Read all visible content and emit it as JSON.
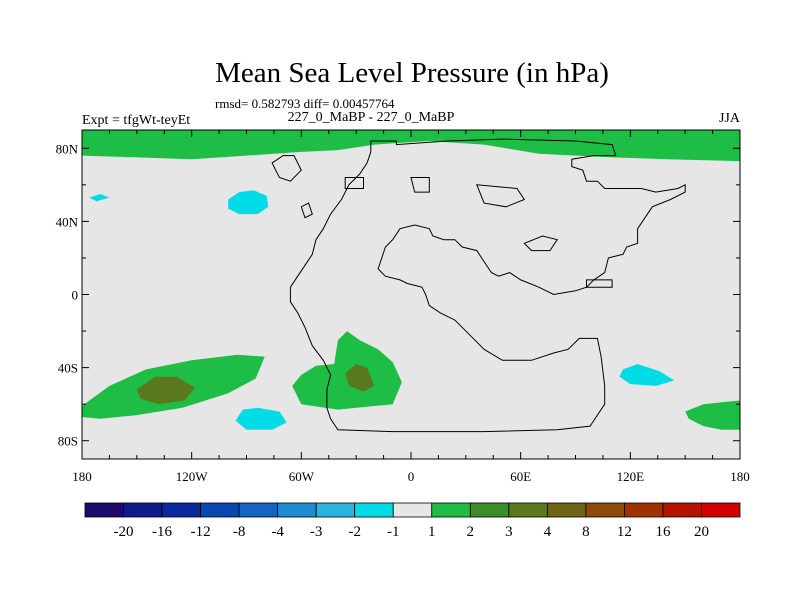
{
  "chart_data": {
    "type": "heatmap",
    "title": "Mean Sea Level Pressure (in hPa)",
    "stats_line": "rmsd= 0.582793 diff= 0.00457764",
    "left_label": "Expt = tfgWt-teyEt",
    "center_label": "227_0_MaBP - 227_0_MaBP",
    "right_label": "JJA",
    "xlim": [
      -180,
      180
    ],
    "ylim": [
      -90,
      90
    ],
    "x_ticks": [
      {
        "value": -180,
        "label": "180"
      },
      {
        "value": -120,
        "label": "120W"
      },
      {
        "value": -60,
        "label": "60W"
      },
      {
        "value": 0,
        "label": "0"
      },
      {
        "value": 60,
        "label": "60E"
      },
      {
        "value": 120,
        "label": "120E"
      },
      {
        "value": 180,
        "label": "180"
      }
    ],
    "y_ticks": [
      {
        "value": 80,
        "label": "80N"
      },
      {
        "value": 40,
        "label": "40N"
      },
      {
        "value": 0,
        "label": "0"
      },
      {
        "value": -40,
        "label": "40S"
      },
      {
        "value": -80,
        "label": "80S"
      }
    ],
    "colorbar": {
      "colors": [
        "#1e0a6e",
        "#0f1a8c",
        "#0a28a0",
        "#0a46b4",
        "#1464c8",
        "#1e8cd2",
        "#28b4dc",
        "#00dce6",
        "#e6e6e6",
        "#1ebe46",
        "#3c8c28",
        "#5a781e",
        "#6e6414",
        "#8c4b0a",
        "#a03200",
        "#b41400",
        "#d20000"
      ],
      "labels": [
        "-20",
        "-16",
        "-12",
        "-8",
        "-4",
        "-3",
        "-2",
        "-1",
        "1",
        "2",
        "3",
        "4",
        "8",
        "12",
        "16",
        "20"
      ]
    },
    "background_color": "#e6e6e6",
    "regions": [
      {
        "level": "1 to 2",
        "color": "#1ebe46",
        "lonlat": [
          [
            -180,
            90
          ],
          [
            180,
            90
          ],
          [
            180,
            73
          ],
          [
            140,
            74
          ],
          [
            110,
            75
          ],
          [
            70,
            77
          ],
          [
            40,
            82
          ],
          [
            10,
            84
          ],
          [
            -20,
            82
          ],
          [
            -40,
            79
          ],
          [
            -60,
            78
          ],
          [
            -90,
            76
          ],
          [
            -120,
            74
          ],
          [
            -150,
            75
          ],
          [
            -180,
            76
          ]
        ]
      },
      {
        "level": "-2 to -1",
        "color": "#00dce6",
        "lonlat": [
          [
            -100,
            52
          ],
          [
            -94,
            56
          ],
          [
            -86,
            57
          ],
          [
            -79,
            54
          ],
          [
            -78,
            48
          ],
          [
            -84,
            44
          ],
          [
            -94,
            44
          ],
          [
            -100,
            47
          ]
        ]
      },
      {
        "level": "-2 to -1",
        "color": "#00dce6",
        "lonlat": [
          [
            -176,
            53
          ],
          [
            -170,
            55
          ],
          [
            -165,
            53
          ],
          [
            -172,
            51
          ]
        ]
      },
      {
        "level": "1 to 2",
        "color": "#1ebe46",
        "lonlat": [
          [
            -180,
            -61
          ],
          [
            -165,
            -50
          ],
          [
            -145,
            -41
          ],
          [
            -120,
            -36
          ],
          [
            -95,
            -33
          ],
          [
            -80,
            -34
          ],
          [
            -85,
            -46
          ],
          [
            -100,
            -54
          ],
          [
            -125,
            -62
          ],
          [
            -150,
            -66
          ],
          [
            -170,
            -68
          ],
          [
            -180,
            -67
          ]
        ]
      },
      {
        "level": "2 to 3",
        "color": "#5a781e",
        "lonlat": [
          [
            -150,
            -52
          ],
          [
            -140,
            -45
          ],
          [
            -128,
            -45
          ],
          [
            -118,
            -51
          ],
          [
            -124,
            -58
          ],
          [
            -138,
            -60
          ],
          [
            -148,
            -57
          ]
        ]
      },
      {
        "level": "1 to 2",
        "color": "#1ebe46",
        "lonlat": [
          [
            -60,
            -44
          ],
          [
            -52,
            -39
          ],
          [
            -42,
            -38
          ],
          [
            -40,
            -25
          ],
          [
            -35,
            -20
          ],
          [
            -28,
            -25
          ],
          [
            -18,
            -30
          ],
          [
            -10,
            -37
          ],
          [
            -5,
            -48
          ],
          [
            -10,
            -60
          ],
          [
            -40,
            -63
          ],
          [
            -60,
            -60
          ],
          [
            -65,
            -50
          ]
        ]
      },
      {
        "level": "2 to 3",
        "color": "#5a781e",
        "lonlat": [
          [
            -36,
            -43
          ],
          [
            -30,
            -38
          ],
          [
            -24,
            -40
          ],
          [
            -20,
            -50
          ],
          [
            -26,
            -53
          ],
          [
            -34,
            -50
          ]
        ]
      },
      {
        "level": "-2 to -1",
        "color": "#00dce6",
        "lonlat": [
          [
            -92,
            -63
          ],
          [
            -84,
            -62
          ],
          [
            -72,
            -64
          ],
          [
            -68,
            -70
          ],
          [
            -76,
            -74
          ],
          [
            -90,
            -74
          ],
          [
            -96,
            -69
          ]
        ]
      },
      {
        "level": "-2 to -1",
        "color": "#00dce6",
        "lonlat": [
          [
            116,
            -41
          ],
          [
            124,
            -38
          ],
          [
            136,
            -42
          ],
          [
            144,
            -47
          ],
          [
            134,
            -50
          ],
          [
            120,
            -49
          ],
          [
            114,
            -45
          ]
        ]
      },
      {
        "level": "1 to 2",
        "color": "#1ebe46",
        "lonlat": [
          [
            150,
            -64
          ],
          [
            160,
            -60
          ],
          [
            170,
            -59
          ],
          [
            180,
            -58
          ],
          [
            180,
            -74
          ],
          [
            170,
            -74
          ],
          [
            160,
            -72
          ],
          [
            152,
            -68
          ]
        ]
      }
    ],
    "continent_outline": [
      [
        -22,
        84
      ],
      [
        -8,
        84
      ],
      [
        -8,
        82
      ],
      [
        20,
        84
      ],
      [
        50,
        85
      ],
      [
        90,
        84
      ],
      [
        110,
        82
      ],
      [
        112,
        76
      ],
      [
        100,
        76
      ],
      [
        88,
        74
      ],
      [
        88,
        70
      ],
      [
        94,
        68
      ],
      [
        96,
        62
      ],
      [
        102,
        62
      ],
      [
        106,
        58
      ],
      [
        126,
        58
      ],
      [
        134,
        56
      ],
      [
        146,
        58
      ],
      [
        150,
        60
      ],
      [
        150,
        56
      ],
      [
        142,
        52
      ],
      [
        132,
        48
      ],
      [
        128,
        42
      ],
      [
        124,
        36
      ],
      [
        124,
        28
      ],
      [
        118,
        26
      ],
      [
        116,
        22
      ],
      [
        108,
        20
      ],
      [
        106,
        12
      ],
      [
        100,
        8
      ],
      [
        96,
        4
      ],
      [
        90,
        2
      ],
      [
        78,
        0
      ],
      [
        70,
        4
      ],
      [
        60,
        8
      ],
      [
        54,
        12
      ],
      [
        48,
        10
      ],
      [
        44,
        12
      ],
      [
        40,
        18
      ],
      [
        36,
        24
      ],
      [
        28,
        26
      ],
      [
        24,
        30
      ],
      [
        18,
        30
      ],
      [
        12,
        32
      ],
      [
        10,
        36
      ],
      [
        2,
        38
      ],
      [
        -6,
        36
      ],
      [
        -10,
        30
      ],
      [
        -14,
        26
      ],
      [
        -16,
        20
      ],
      [
        -18,
        14
      ],
      [
        -14,
        10
      ],
      [
        -6,
        8
      ],
      [
        -2,
        6
      ],
      [
        6,
        4
      ],
      [
        8,
        0
      ],
      [
        10,
        -6
      ],
      [
        16,
        -10
      ],
      [
        24,
        -14
      ],
      [
        32,
        -22
      ],
      [
        40,
        -30
      ],
      [
        50,
        -36
      ],
      [
        66,
        -36
      ],
      [
        78,
        -32
      ],
      [
        86,
        -30
      ],
      [
        92,
        -24
      ],
      [
        102,
        -24
      ],
      [
        104,
        -34
      ],
      [
        106,
        -50
      ],
      [
        106,
        -60
      ],
      [
        102,
        -66
      ],
      [
        98,
        -72
      ],
      [
        80,
        -74
      ],
      [
        40,
        -75
      ],
      [
        -10,
        -75
      ],
      [
        -40,
        -74
      ],
      [
        -44,
        -68
      ],
      [
        -46,
        -62
      ],
      [
        -46,
        -52
      ],
      [
        -44,
        -44
      ],
      [
        -48,
        -36
      ],
      [
        -54,
        -28
      ],
      [
        -58,
        -18
      ],
      [
        -62,
        -10
      ],
      [
        -66,
        -4
      ],
      [
        -66,
        4
      ],
      [
        -62,
        10
      ],
      [
        -58,
        16
      ],
      [
        -54,
        22
      ],
      [
        -52,
        30
      ],
      [
        -48,
        36
      ],
      [
        -44,
        44
      ],
      [
        -38,
        52
      ],
      [
        -34,
        60
      ],
      [
        -28,
        66
      ],
      [
        -24,
        72
      ],
      [
        -22,
        78
      ],
      [
        -22,
        84
      ]
    ],
    "outline_details": [
      [
        [
          -76,
          72
        ],
        [
          -70,
          76
        ],
        [
          -64,
          76
        ],
        [
          -60,
          68
        ],
        [
          -66,
          62
        ],
        [
          -72,
          64
        ],
        [
          -74,
          68
        ]
      ],
      [
        [
          -36,
          64
        ],
        [
          -26,
          64
        ],
        [
          -26,
          58
        ],
        [
          -36,
          58
        ]
      ],
      [
        [
          -60,
          48
        ],
        [
          -56,
          50
        ],
        [
          -54,
          44
        ],
        [
          -58,
          42
        ]
      ],
      [
        [
          0,
          64
        ],
        [
          10,
          64
        ],
        [
          10,
          56
        ],
        [
          2,
          56
        ]
      ],
      [
        [
          62,
          28
        ],
        [
          72,
          32
        ],
        [
          80,
          30
        ],
        [
          76,
          24
        ],
        [
          66,
          24
        ]
      ],
      [
        [
          96,
          8
        ],
        [
          110,
          8
        ],
        [
          110,
          4
        ],
        [
          96,
          4
        ]
      ],
      [
        [
          36,
          60
        ],
        [
          58,
          58
        ],
        [
          62,
          52
        ],
        [
          52,
          48
        ],
        [
          40,
          50
        ]
      ]
    ]
  }
}
